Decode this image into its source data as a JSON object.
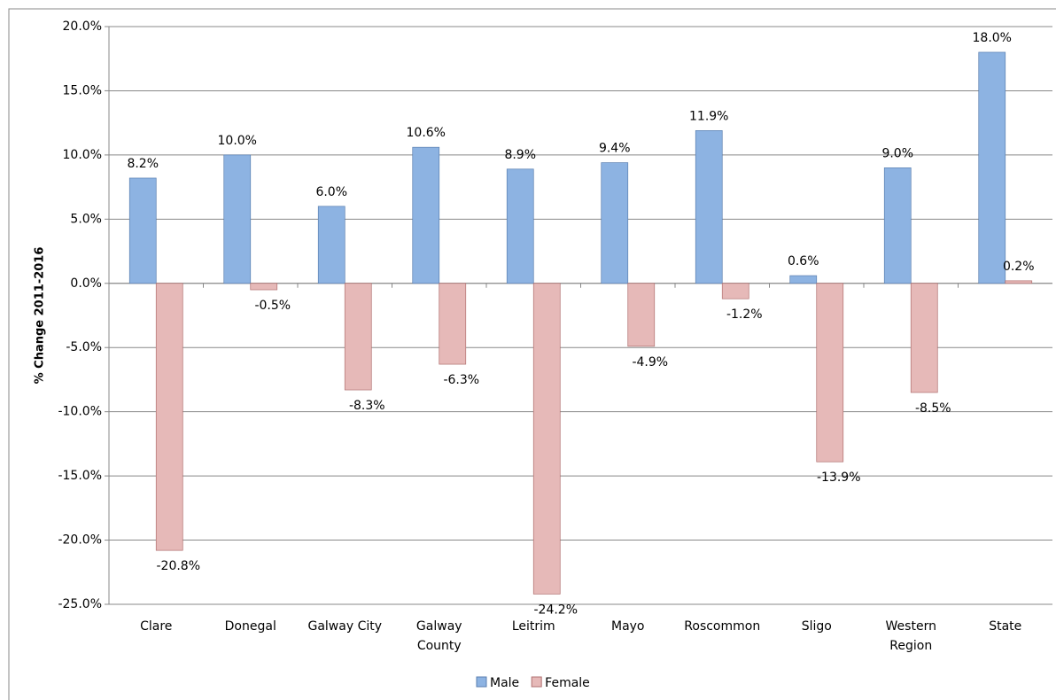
{
  "chart_data": {
    "type": "bar",
    "y_label": "% Change 2011-2016",
    "categories": [
      "Clare",
      "Donegal",
      "Galway City",
      "Galway County",
      "Leitrim",
      "Mayo",
      "Roscommon",
      "Sligo",
      "Western Region",
      "State"
    ],
    "series": [
      {
        "name": "Male",
        "color": "#8db3e2",
        "values": [
          8.2,
          10.0,
          6.0,
          10.6,
          8.9,
          9.4,
          11.9,
          0.6,
          9.0,
          18.0
        ],
        "value_labels": [
          "8.2%",
          "10.0%",
          "6.0%",
          "10.6%",
          "8.9%",
          "9.4%",
          "11.9%",
          "0.6%",
          "9.0%",
          "18.0%"
        ]
      },
      {
        "name": "Female",
        "color": "#e6b9b8",
        "values": [
          -20.8,
          -0.5,
          -8.3,
          -6.3,
          -24.2,
          -4.9,
          -1.2,
          -13.9,
          -8.5,
          0.2
        ],
        "value_labels": [
          "-20.8%",
          "-0.5%",
          "-8.3%",
          "-6.3%",
          "-24.2%",
          "-4.9%",
          "-1.2%",
          "-13.9%",
          "-8.5%",
          "0.2%"
        ]
      }
    ],
    "ylim": [
      -25,
      20
    ],
    "yticks": [
      {
        "value": -25,
        "label": "-25.0%"
      },
      {
        "value": -20,
        "label": "-20.0%"
      },
      {
        "value": -15,
        "label": "-15.0%"
      },
      {
        "value": -10,
        "label": "-10.0%"
      },
      {
        "value": -5,
        "label": "-5.0%"
      },
      {
        "value": 0,
        "label": "0.0%"
      },
      {
        "value": 5,
        "label": "5.0%"
      },
      {
        "value": 10,
        "label": "10.0%"
      },
      {
        "value": 15,
        "label": "15.0%"
      },
      {
        "value": 20,
        "label": "20.0%"
      }
    ],
    "grid": true,
    "legend": "bottom"
  }
}
